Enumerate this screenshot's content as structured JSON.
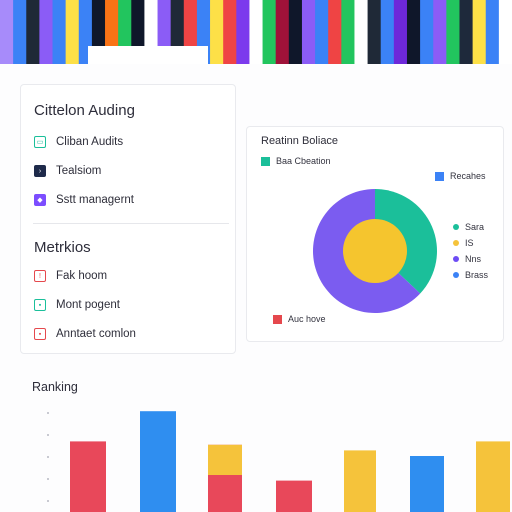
{
  "banner": {
    "stripe_colors": [
      "#a78bfa",
      "#3b82f6",
      "#1f2937",
      "#8b5cf6",
      "#3b82f6",
      "#fde047",
      "#3b82f6",
      "#0f172a",
      "#f97316",
      "#22c55e",
      "#0f172a",
      "#ffffff",
      "#8b5cf6",
      "#1f2937",
      "#ef4444",
      "#3b82f6",
      "#fde047",
      "#ef4444",
      "#7c3aed",
      "#ffffff",
      "#22c55e",
      "#9f1239",
      "#0f172a",
      "#8b5cf6",
      "#3b82f6",
      "#ef4444",
      "#22c55e",
      "#ffffff",
      "#1f2937",
      "#3b82f6",
      "#6d28d9",
      "#0f172a",
      "#3b82f6",
      "#8b5cf6",
      "#22c55e",
      "#1e293b",
      "#fde047",
      "#3b82f6",
      "#ffffff"
    ]
  },
  "sidebar": {
    "title": "Cittelon Auding",
    "items": [
      {
        "label": "Cliban Audits",
        "icon": "document-icon",
        "color": "#1bbf9a",
        "style": "outline"
      },
      {
        "label": "Tealsiom",
        "icon": "terminal-icon",
        "color": "#1e2a4a",
        "style": "fill"
      },
      {
        "label": "Sstt managernt",
        "icon": "shield-icon",
        "color": "#7c4dff",
        "style": "fill"
      }
    ]
  },
  "metrics": {
    "title": "Metrkios",
    "items": [
      {
        "label": "Fak hoom",
        "icon": "alert-icon",
        "color": "#e5484d",
        "style": "outline"
      },
      {
        "label": "Mont pogent",
        "icon": "chart-icon",
        "color": "#1bbf9a",
        "style": "outline"
      },
      {
        "label": "Anntaet comlon",
        "icon": "flag-icon",
        "color": "#e5484d",
        "style": "outline"
      }
    ]
  },
  "breakdown": {
    "title": "Reatinn Boliace",
    "top_left_label": "Baa Cbeation",
    "top_left_color": "#1bbf9a",
    "top_right_label": "Recahes",
    "top_right_color": "#3b82f6",
    "bottom_label": "Auc hove",
    "bottom_color": "#e5484d",
    "legend": [
      {
        "label": "Sara",
        "color": "#1bbf9a"
      },
      {
        "label": "IS",
        "color": "#f5c33b"
      },
      {
        "label": "Nns",
        "color": "#6d4cf5"
      },
      {
        "label": "Brass",
        "color": "#3b82f6"
      }
    ]
  },
  "ranking": {
    "title": "Ranking"
  },
  "chart_data": [
    {
      "type": "pie",
      "title": "Reatinn Boliace",
      "slices": [
        {
          "name": "Sara",
          "value": 37,
          "color": "#1bbf9a"
        },
        {
          "name": "Nns",
          "value": 63,
          "color": "#7b5cf0"
        }
      ],
      "inner_circle_color": "#f5c52e"
    },
    {
      "type": "bar",
      "title": "Ranking",
      "ylim": [
        0,
        100
      ],
      "bars": [
        {
          "value": 63,
          "color": "#e8485a",
          "top_color": "#e8485a"
        },
        {
          "value": 90,
          "color": "#2f8ef0",
          "top_color": "#2f8ef0"
        },
        {
          "value": 60,
          "color": "#e8485a",
          "top_color": "#f5c33b"
        },
        {
          "value": 28,
          "color": "#e8485a",
          "top_color": "#e8485a"
        },
        {
          "value": 55,
          "color": "#f5c33b",
          "top_color": "#f5c33b"
        },
        {
          "value": 50,
          "color": "#2f8ef0",
          "top_color": "#2f8ef0"
        },
        {
          "value": 63,
          "color": "#f5c33b",
          "top_color": "#f5c33b"
        }
      ]
    }
  ]
}
